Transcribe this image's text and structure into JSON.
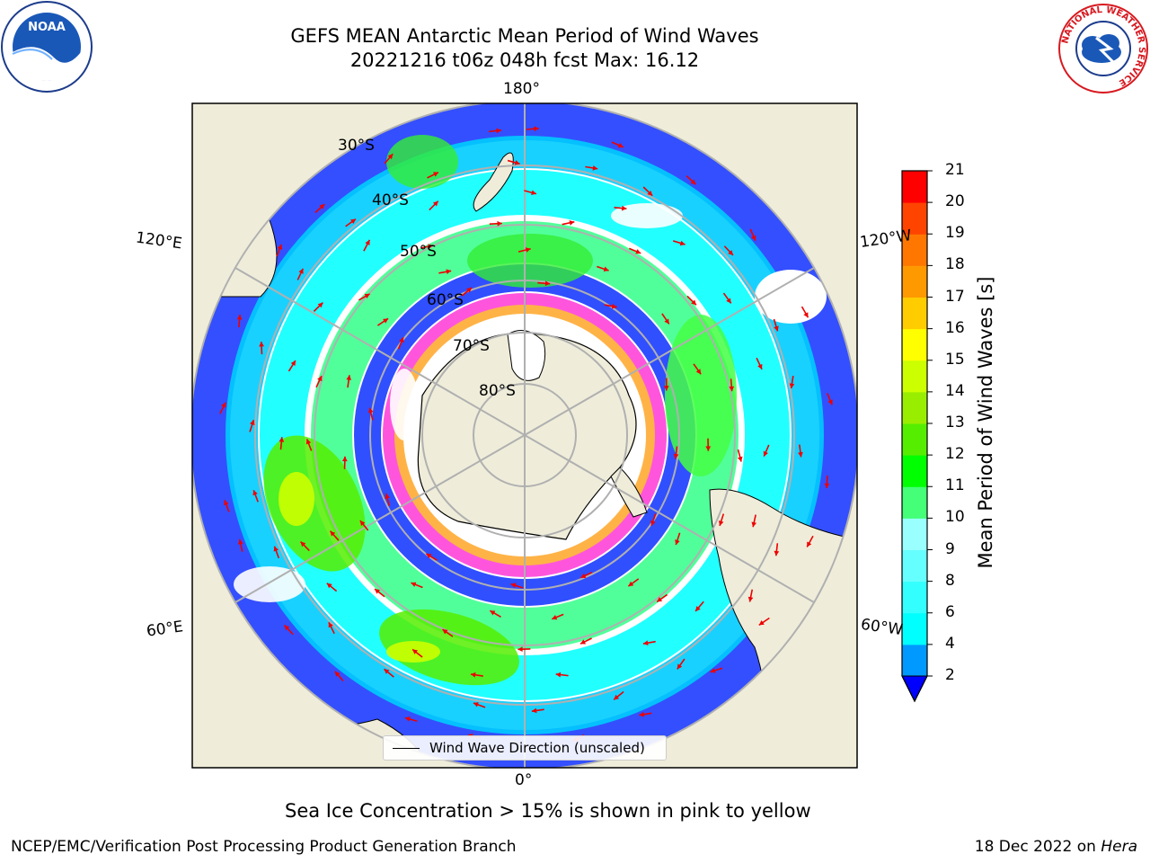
{
  "title": {
    "line1": "GEFS MEAN Antarctic Mean Period of Wind Waves",
    "line2": "20221216 t06z 048h fcst   Max: 16.12"
  },
  "map": {
    "longitude_labels": {
      "top": "180°",
      "bottom": "0°",
      "upper_left": "120°E",
      "upper_right": "120°W",
      "lower_left": "60°E",
      "lower_right": "60°W"
    },
    "latitude_labels": [
      "30°S",
      "40°S",
      "50°S",
      "60°S",
      "70°S",
      "80°S"
    ],
    "legend_label": "Wind Wave Direction (unscaled)",
    "colors": {
      "land": "#efedda",
      "ocean_blank": "#ffffff",
      "sea_ice_pink": "#ff66e0",
      "sea_ice_orange": "#ffb347",
      "arrow": "#ee0000",
      "grid": "#b0b0b0"
    }
  },
  "colorbar": {
    "label": "Mean Period of Wind Waves [s]",
    "ticks": [
      "2",
      "4",
      "6",
      "8",
      "9",
      "10",
      "11",
      "12",
      "13",
      "14",
      "15",
      "16",
      "17",
      "18",
      "19",
      "20",
      "21"
    ],
    "colors": [
      "#0044ff",
      "#0099ff",
      "#00ffff",
      "#33ffff",
      "#66ffff",
      "#99ffff",
      "#44ff77",
      "#00ff00",
      "#55ee00",
      "#99ee00",
      "#ccff00",
      "#ffff00",
      "#ffcc00",
      "#ff9900",
      "#ff7700",
      "#ff4400",
      "#ff0000"
    ],
    "extend_color": "#0000ff"
  },
  "caption": "Sea Ice Concentration > 15% is shown in pink to yellow",
  "footer": {
    "left": "NCEP/EMC/Verification Post Processing Product Generation Branch",
    "right_date": "18 Dec 2022 on ",
    "right_host": "Hera"
  },
  "logos": {
    "left": "NOAA",
    "right_ring": "NATIONAL WEATHER SERVICE"
  }
}
